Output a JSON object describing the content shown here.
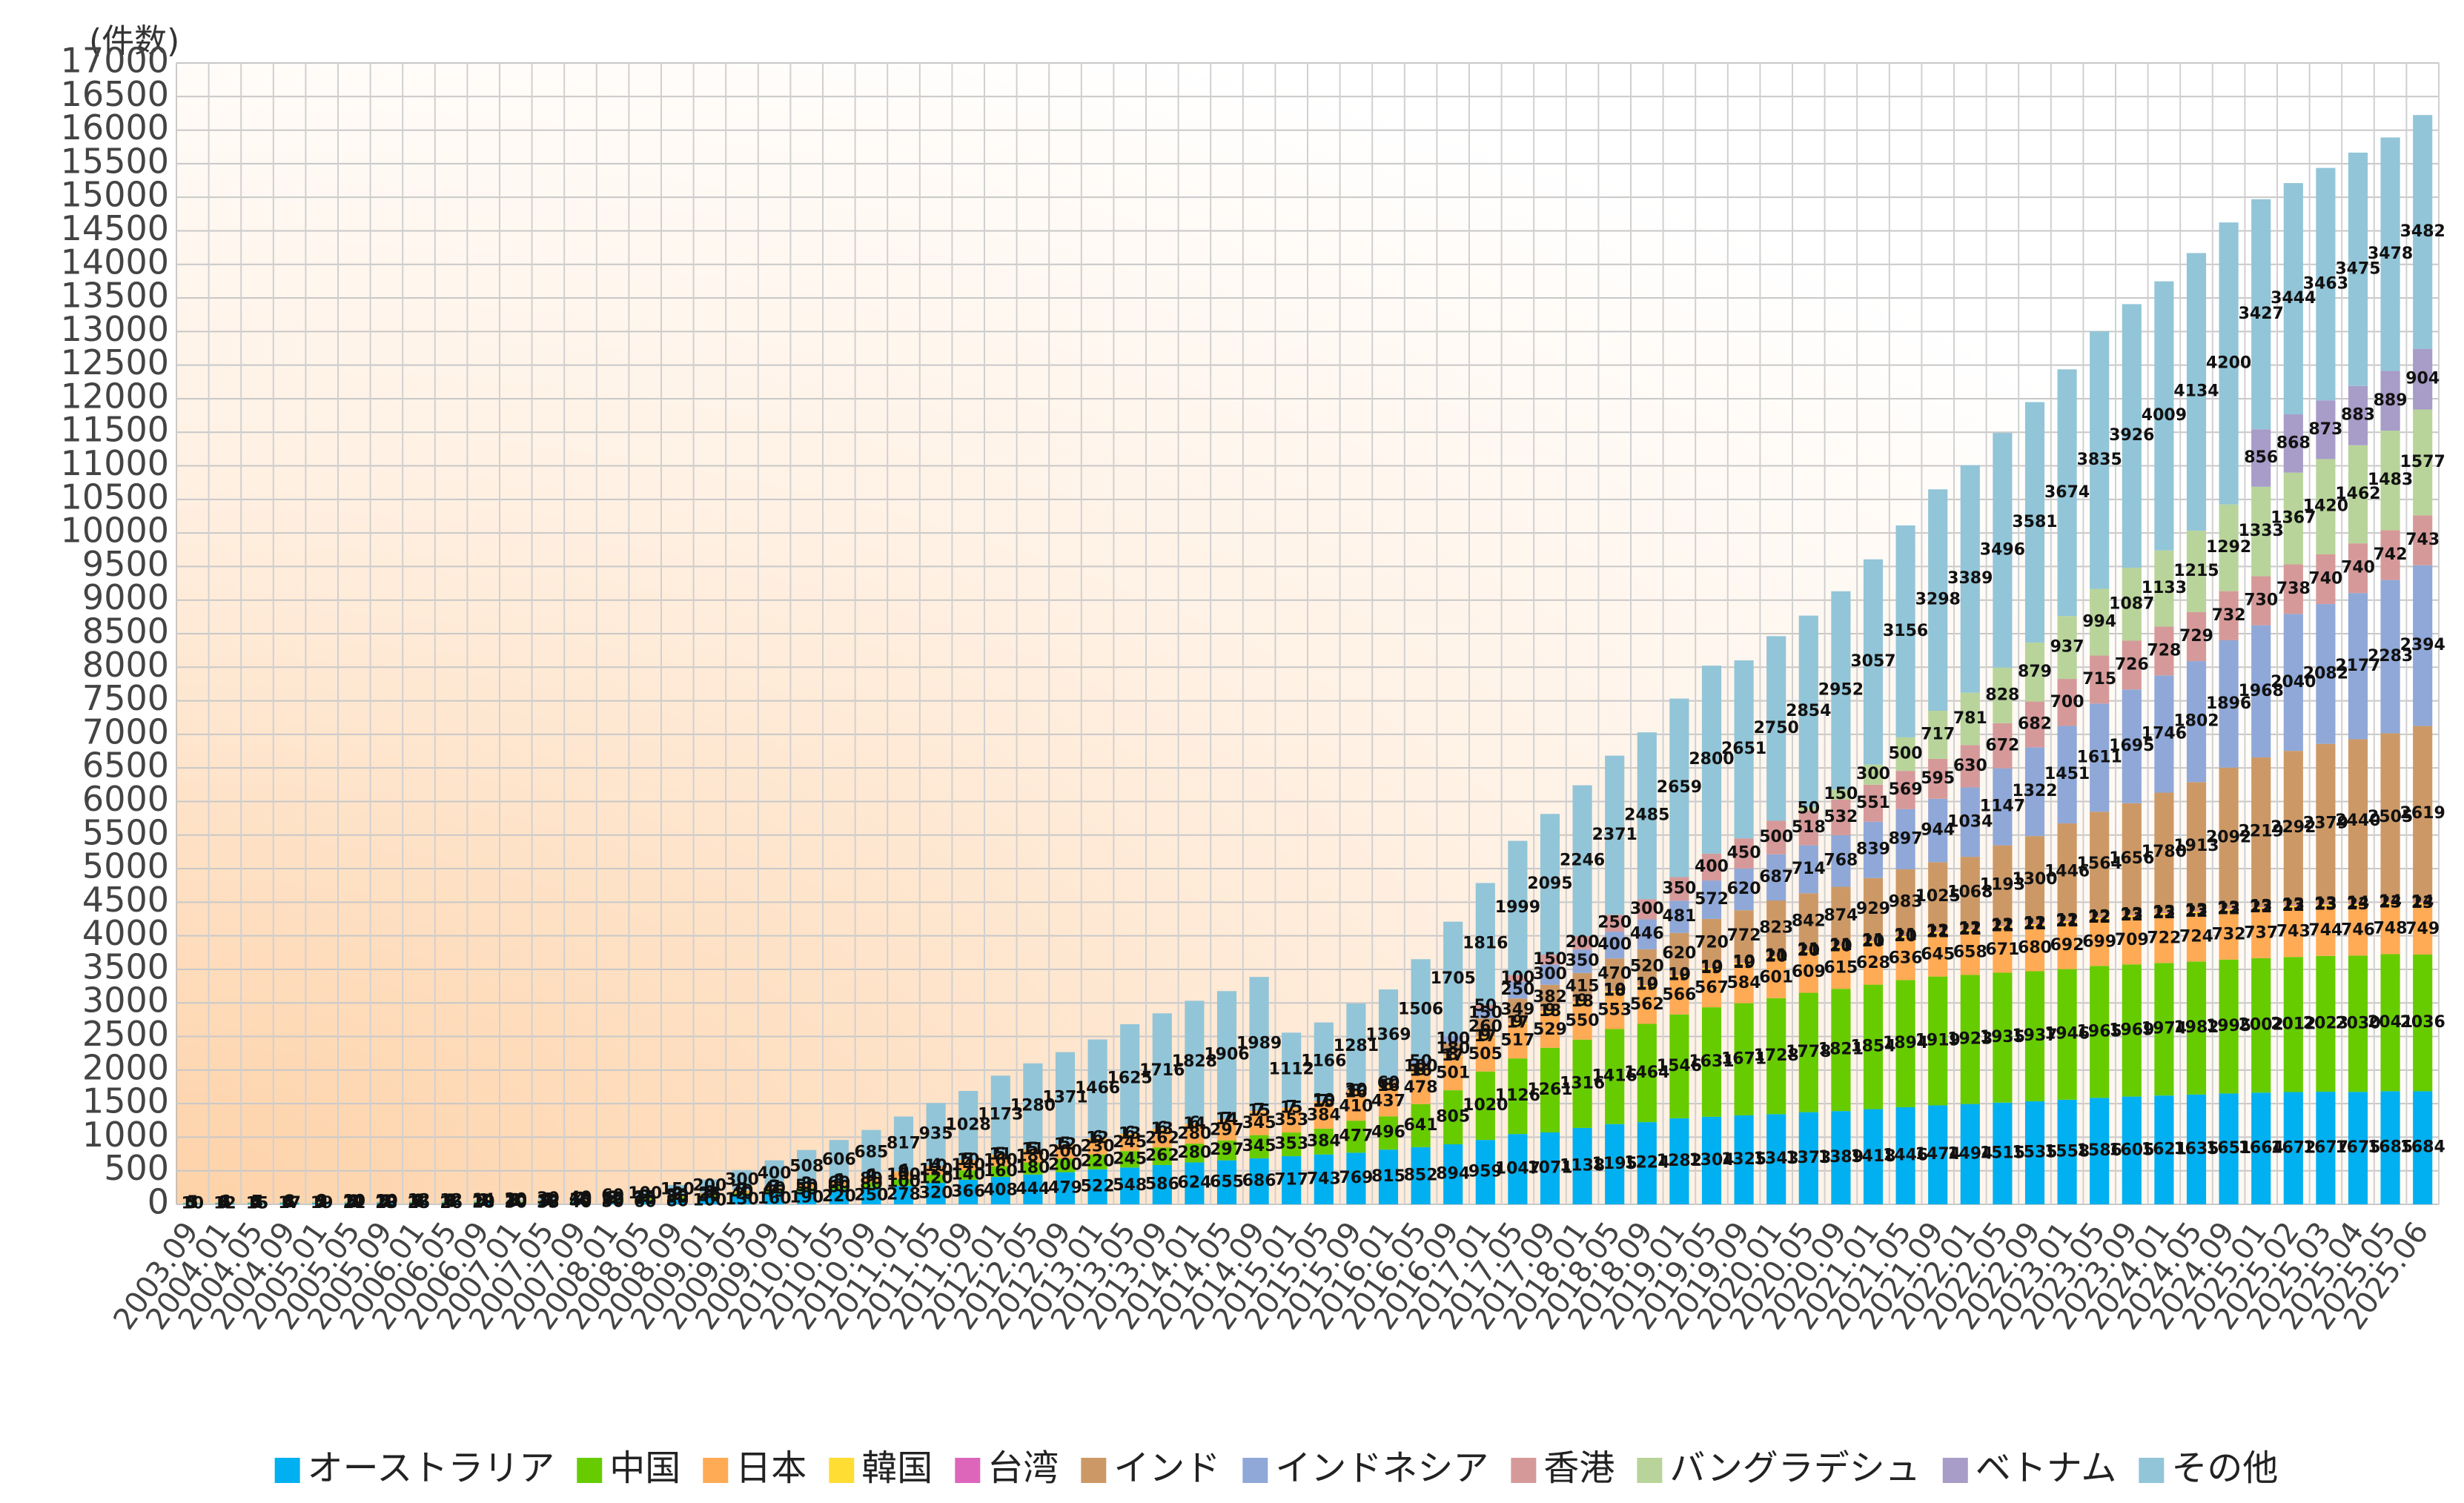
{
  "chart_data": {
    "type": "stacked_bar",
    "y_label": "(件数)",
    "categories": [
      "2003.09",
      "2004.01",
      "2004.05",
      "2004.09",
      "2005.01",
      "2005.05",
      "2005.09",
      "2006.01",
      "2006.05",
      "2006.09",
      "2007.01",
      "2007.05",
      "2007.09",
      "2008.01",
      "2008.05",
      "2008.09",
      "2009.01",
      "2009.05",
      "2009.09",
      "2010.01",
      "2010.05",
      "2010.09",
      "2011.01",
      "2011.05",
      "2011.09",
      "2012.01",
      "2012.05",
      "2012.09",
      "2013.01",
      "2013.05",
      "2013.09",
      "2014.01",
      "2014.05",
      "2014.09",
      "2015.01",
      "2015.05",
      "2015.09",
      "2016.01",
      "2016.05",
      "2016.09",
      "2017.01",
      "2017.05",
      "2017.09",
      "2018.01",
      "2018.05",
      "2018.09",
      "2019.01",
      "2019.05",
      "2019.09",
      "2020.01",
      "2020.05",
      "2020.09",
      "2021.01",
      "2021.05",
      "2021.09",
      "2022.01",
      "2022.05",
      "2022.09",
      "2023.01",
      "2023.05",
      "2023.09",
      "2024.01",
      "2024.05",
      "2024.09",
      "2025.01",
      "2025.02",
      "2025.03",
      "2025.04",
      "2025.05",
      "2025.06"
    ],
    "series": [
      {
        "name": "オーストラリア",
        "color": "#00b0f0",
        "values": [
          10,
          12,
          15,
          17,
          19,
          21,
          23,
          25,
          26,
          28,
          30,
          35,
          40,
          50,
          60,
          80,
          100,
          130,
          160,
          190,
          220,
          250,
          278,
          320,
          366,
          408,
          444,
          479,
          522,
          548,
          586,
          624,
          655,
          686,
          717,
          743,
          769,
          815,
          852,
          894,
          959,
          1047,
          1071,
          1138,
          1195,
          1224,
          1282,
          1304,
          1325,
          1343,
          1373,
          1389,
          1418,
          1446,
          1474,
          1494,
          1515,
          1535,
          1558,
          1586,
          1605,
          1621,
          1635,
          1651,
          1664,
          1672,
          1677,
          1675,
          1685,
          1684
        ]
      },
      {
        "name": "中国",
        "color": "#66cc00",
        "values": [
          5,
          5,
          5,
          5,
          5,
          5,
          5,
          8,
          8,
          10,
          10,
          12,
          15,
          20,
          25,
          30,
          35,
          40,
          45,
          50,
          60,
          80,
          100,
          120,
          140,
          160,
          180,
          200,
          220,
          245,
          262,
          280,
          297,
          345,
          353,
          384,
          477,
          496,
          641,
          805,
          1020,
          1126,
          1261,
          1316,
          1416,
          1464,
          1546,
          1631,
          1671,
          1728,
          1778,
          1821,
          1854,
          1894,
          1919,
          1923,
          1935,
          1937,
          1946,
          1965,
          1969,
          1974,
          1982,
          1995,
          2002,
          2012,
          2023,
          2030,
          2041,
          2036
        ]
      },
      {
        "name": "日本",
        "color": "#ffaa55",
        "values": [
          3,
          3,
          4,
          4,
          5,
          5,
          5,
          6,
          6,
          7,
          8,
          9,
          10,
          12,
          15,
          20,
          25,
          30,
          40,
          50,
          60,
          80,
          100,
          120,
          140,
          160,
          180,
          200,
          230,
          245,
          262,
          280,
          297,
          345,
          353,
          384,
          410,
          437,
          478,
          501,
          505,
          517,
          529,
          550,
          553,
          562,
          566,
          567,
          584,
          601,
          609,
          615,
          628,
          636,
          645,
          658,
          671,
          680,
          692,
          699,
          709,
          722,
          724,
          732,
          737,
          743,
          744,
          746,
          748,
          749
        ]
      },
      {
        "name": "韓国",
        "color": "#ffdd33",
        "values": [
          1,
          1,
          1,
          1,
          2,
          2,
          2,
          2,
          3,
          3,
          3,
          4,
          4,
          5,
          5,
          6,
          6,
          7,
          7,
          8,
          8,
          9,
          9,
          10,
          10,
          11,
          11,
          12,
          12,
          13,
          13,
          14,
          14,
          15,
          15,
          15,
          16,
          16,
          16,
          17,
          17,
          17,
          18,
          18,
          18,
          19,
          19,
          19,
          19,
          20,
          20,
          20,
          20,
          20,
          21,
          21,
          21,
          21,
          21,
          22,
          22,
          22,
          22,
          22,
          22,
          22,
          23,
          23,
          23,
          23
        ]
      },
      {
        "name": "台湾",
        "color": "#dd66bb",
        "values": [
          1,
          1,
          1,
          1,
          1,
          1,
          1,
          1,
          1,
          1,
          1,
          1,
          2,
          2,
          2,
          2,
          3,
          3,
          3,
          3,
          4,
          4,
          4,
          4,
          5,
          5,
          5,
          5,
          6,
          6,
          6,
          6,
          7,
          7,
          7,
          7,
          8,
          8,
          8,
          8,
          9,
          9,
          9,
          9,
          10,
          10,
          10,
          10,
          10,
          11,
          11,
          11,
          11,
          11,
          12,
          12,
          12,
          12,
          12,
          12,
          13,
          13,
          13,
          13,
          13,
          13,
          13,
          14,
          14,
          14
        ]
      },
      {
        "name": "インド",
        "color": "#cc9966",
        "values": [
          0,
          0,
          0,
          0,
          0,
          0,
          0,
          0,
          0,
          0,
          0,
          0,
          0,
          0,
          0,
          0,
          0,
          0,
          0,
          0,
          0,
          0,
          0,
          0,
          0,
          0,
          0,
          0,
          0,
          0,
          0,
          0,
          0,
          0,
          0,
          10,
          30,
          60,
          100,
          180,
          260,
          349,
          382,
          415,
          470,
          520,
          620,
          720,
          772,
          823,
          842,
          874,
          929,
          983,
          1025,
          1068,
          1193,
          1300,
          1446,
          1564,
          1656,
          1780,
          1913,
          2092,
          2219,
          2292,
          2379,
          2440,
          2505,
          2619
        ]
      },
      {
        "name": "インドネシア",
        "color": "#8fa8d8",
        "values": [
          0,
          0,
          0,
          0,
          0,
          0,
          0,
          0,
          0,
          0,
          0,
          0,
          0,
          0,
          0,
          0,
          0,
          0,
          0,
          0,
          0,
          0,
          0,
          0,
          0,
          0,
          0,
          0,
          0,
          0,
          0,
          0,
          0,
          0,
          0,
          0,
          0,
          0,
          50,
          100,
          150,
          250,
          300,
          350,
          400,
          446,
          481,
          572,
          620,
          687,
          714,
          768,
          839,
          897,
          944,
          1034,
          1147,
          1322,
          1451,
          1611,
          1695,
          1746,
          1802,
          1896,
          1968,
          2040,
          2082,
          2177,
          2283,
          2394
        ]
      },
      {
        "name": "香港",
        "color": "#d69999",
        "values": [
          0,
          0,
          0,
          0,
          0,
          0,
          0,
          0,
          0,
          0,
          0,
          0,
          0,
          0,
          0,
          0,
          0,
          0,
          0,
          0,
          0,
          0,
          0,
          0,
          0,
          0,
          0,
          0,
          0,
          0,
          0,
          0,
          0,
          0,
          0,
          0,
          0,
          0,
          0,
          0,
          50,
          100,
          150,
          200,
          250,
          300,
          350,
          400,
          450,
          500,
          518,
          532,
          551,
          569,
          595,
          630,
          672,
          682,
          700,
          715,
          726,
          728,
          729,
          732,
          730,
          738,
          740,
          740,
          742,
          743
        ]
      },
      {
        "name": "バングラデシュ",
        "color": "#b8d49a",
        "values": [
          0,
          0,
          0,
          0,
          0,
          0,
          0,
          0,
          0,
          0,
          0,
          0,
          0,
          0,
          0,
          0,
          0,
          0,
          0,
          0,
          0,
          0,
          0,
          0,
          0,
          0,
          0,
          0,
          0,
          0,
          0,
          0,
          0,
          0,
          0,
          0,
          0,
          0,
          0,
          0,
          0,
          0,
          0,
          0,
          0,
          0,
          0,
          0,
          0,
          0,
          50,
          150,
          300,
          500,
          717,
          781,
          828,
          879,
          937,
          994,
          1087,
          1133,
          1215,
          1292,
          1333,
          1367,
          1420,
          1462,
          1483,
          1577
        ]
      },
      {
        "name": "ベトナム",
        "color": "#a89cc8",
        "values": [
          0,
          0,
          0,
          0,
          0,
          0,
          0,
          0,
          0,
          0,
          0,
          0,
          0,
          0,
          0,
          0,
          0,
          0,
          0,
          0,
          0,
          0,
          0,
          0,
          0,
          0,
          0,
          0,
          0,
          0,
          0,
          0,
          0,
          0,
          0,
          0,
          0,
          0,
          0,
          0,
          0,
          0,
          0,
          0,
          0,
          0,
          0,
          0,
          0,
          0,
          0,
          0,
          0,
          0,
          0,
          0,
          0,
          0,
          0,
          0,
          0,
          0,
          0,
          0,
          856,
          868,
          873,
          883,
          889,
          904
        ]
      },
      {
        "name": "その他",
        "color": "#92c5d8",
        "values": [
          5,
          6,
          7,
          8,
          9,
          10,
          10,
          12,
          12,
          14,
          20,
          30,
          40,
          60,
          100,
          150,
          200,
          300,
          400,
          508,
          606,
          685,
          817,
          935,
          1028,
          1173,
          1280,
          1371,
          1466,
          1625,
          1716,
          1828,
          1906,
          1989,
          1112,
          1166,
          1281,
          1369,
          1506,
          1705,
          1816,
          1999,
          2095,
          2246,
          2371,
          2485,
          2659,
          2800,
          2651,
          2750,
          2854,
          2952,
          3057,
          3156,
          3298,
          3389,
          3496,
          3581,
          3674,
          3835,
          3926,
          4009,
          4134,
          4200,
          3427,
          3444,
          3463,
          3475,
          3478,
          3482
        ]
      }
    ],
    "ylim": [
      0,
      17000
    ],
    "yticks": [
      0,
      500,
      1000,
      1500,
      2000,
      2500,
      3000,
      3500,
      4000,
      4500,
      5000,
      5500,
      6000,
      6500,
      7000,
      7500,
      8000,
      8500,
      9000,
      9500,
      10000,
      10500,
      11000,
      11500,
      12000,
      12500,
      13000,
      13500,
      14000,
      14500,
      15000,
      15500,
      16000,
      16500,
      17000
    ],
    "grid": true,
    "legend": "bottom"
  }
}
